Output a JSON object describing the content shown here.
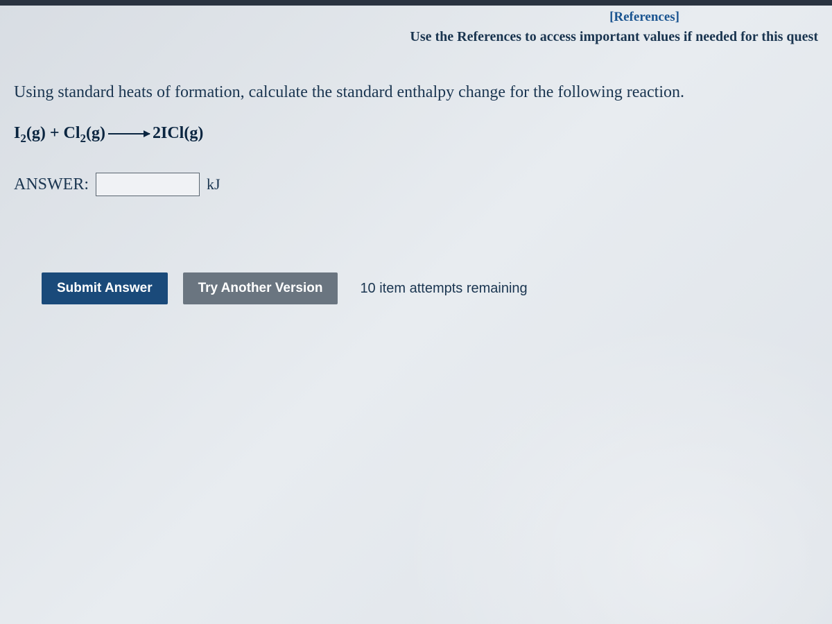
{
  "header": {
    "references_link": "[References]",
    "hint": "Use the References to access important values if needed for this quest"
  },
  "question": {
    "prompt": "Using standard heats of formation, calculate the standard enthalpy change for the following reaction.",
    "reactant1_base": "I",
    "reactant1_sub": "2",
    "reactant1_phase": "(g)",
    "plus": " + ",
    "reactant2_base": "Cl",
    "reactant2_sub": "2",
    "reactant2_phase": "(g)",
    "product_coeff": "2",
    "product_formula": "ICl",
    "product_phase": "(g)"
  },
  "answer": {
    "label": "ANSWER:",
    "value": "",
    "unit": "kJ"
  },
  "buttons": {
    "submit": "Submit Answer",
    "try_another": "Try Another Version"
  },
  "status": {
    "attempts": "10 item attempts remaining"
  },
  "colors": {
    "background": "#e0e5ea",
    "text_primary": "#1a3550",
    "link": "#1a5490",
    "btn_submit": "#1a4a7a",
    "btn_try": "#6a7580"
  }
}
